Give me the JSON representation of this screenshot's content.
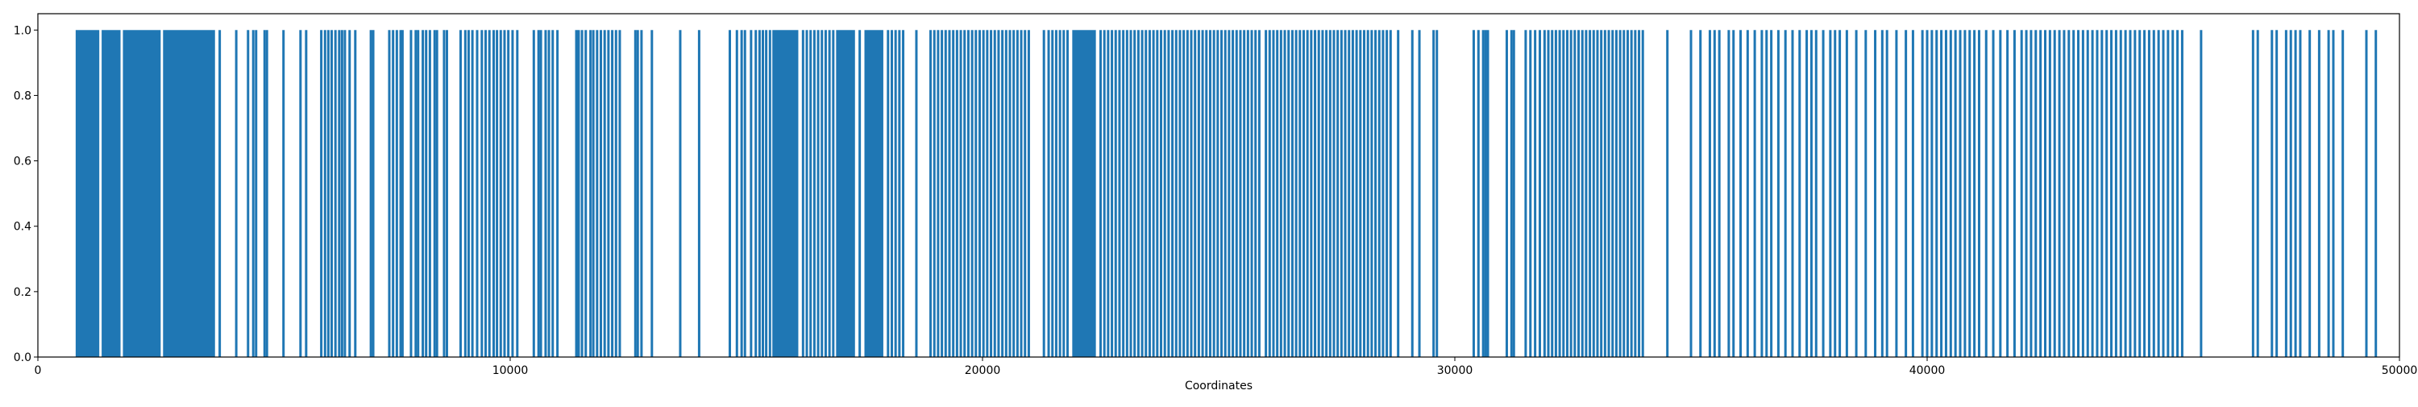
{
  "chart_data": {
    "type": "bar",
    "title": "",
    "xlabel": "Coordinates",
    "ylabel": "",
    "xlim": [
      0,
      50000
    ],
    "ylim": [
      0,
      1.05
    ],
    "grid": false,
    "bar_color": "#1f77b4",
    "bar_value": 1.0,
    "dense_blocks": [
      [
        800,
        1300
      ],
      [
        1350,
        1750
      ],
      [
        1800,
        2600
      ],
      [
        2650,
        3750
      ],
      [
        15550,
        16100
      ],
      [
        16900,
        17300
      ],
      [
        17500,
        17900
      ],
      [
        21900,
        22400
      ]
    ],
    "x": [
      3850,
      4200,
      4450,
      4560,
      4620,
      4800,
      4850,
      5200,
      5560,
      5680,
      6000,
      6080,
      6150,
      6220,
      6300,
      6380,
      6440,
      6500,
      6600,
      6720,
      7050,
      7100,
      7440,
      7520,
      7600,
      7680,
      7720,
      7900,
      8000,
      8050,
      8150,
      8220,
      8300,
      8400,
      8450,
      8600,
      8660,
      8950,
      9050,
      9120,
      9200,
      9300,
      9400,
      9480,
      9560,
      9650,
      9720,
      9800,
      9880,
      9960,
      10050,
      10150,
      10500,
      10600,
      10650,
      10750,
      10820,
      10900,
      11000,
      11400,
      11450,
      11520,
      11600,
      11700,
      11760,
      11840,
      11920,
      12000,
      12080,
      12160,
      12240,
      12320,
      12650,
      12700,
      12780,
      13000,
      13600,
      14000,
      14650,
      14800,
      14900,
      14970,
      15100,
      15200,
      15280,
      15350,
      15420,
      15500,
      16200,
      16280,
      16360,
      16440,
      16520,
      16600,
      16680,
      16760,
      16840,
      17400,
      18000,
      18080,
      18160,
      18240,
      18320,
      18600,
      18900,
      18980,
      19060,
      19140,
      19220,
      19300,
      19380,
      19460,
      19540,
      19620,
      19700,
      19780,
      19860,
      19940,
      20020,
      20100,
      20180,
      20260,
      20340,
      20420,
      20500,
      20580,
      20660,
      20740,
      20820,
      20900,
      20980,
      21300,
      21400,
      21480,
      21560,
      21640,
      21720,
      21800,
      22500,
      22580,
      22660,
      22740,
      22820,
      22900,
      22980,
      23060,
      23140,
      23220,
      23300,
      23380,
      23460,
      23540,
      23620,
      23700,
      23780,
      23860,
      23940,
      24020,
      24100,
      24180,
      24260,
      24340,
      24420,
      24500,
      24580,
      24660,
      24740,
      24820,
      24900,
      24980,
      25060,
      25140,
      25220,
      25300,
      25380,
      25460,
      25540,
      25620,
      25700,
      25780,
      25860,
      26000,
      26080,
      26160,
      26240,
      26320,
      26400,
      26480,
      26560,
      26640,
      26720,
      26800,
      26880,
      26960,
      27040,
      27120,
      27200,
      27280,
      27360,
      27440,
      27520,
      27600,
      27680,
      27760,
      27840,
      27920,
      28000,
      28080,
      28160,
      28240,
      28320,
      28400,
      28480,
      28560,
      28640,
      28800,
      29100,
      29250,
      29550,
      29620,
      30400,
      30500,
      30600,
      30650,
      30700,
      31100,
      31200,
      31250,
      31500,
      31600,
      31700,
      31800,
      31900,
      31980,
      32060,
      32140,
      32220,
      32300,
      32380,
      32460,
      32540,
      32620,
      32700,
      32780,
      32860,
      32940,
      33020,
      33100,
      33180,
      33260,
      33340,
      33420,
      33500,
      33580,
      33660,
      33740,
      33820,
      33900,
      33980,
      34500,
      35000,
      35200,
      35400,
      35500,
      35600,
      35800,
      35900,
      36050,
      36200,
      36350,
      36500,
      36600,
      36700,
      36850,
      37000,
      37150,
      37300,
      37450,
      37550,
      37650,
      37800,
      37950,
      38050,
      38150,
      38300,
      38500,
      38700,
      38900,
      39050,
      39150,
      39350,
      39550,
      39700,
      39900,
      40000,
      40100,
      40200,
      40300,
      40400,
      40500,
      40600,
      40700,
      40800,
      40900,
      41000,
      41100,
      41250,
      41400,
      41550,
      41700,
      41850,
      42000,
      42100,
      42200,
      42300,
      42400,
      42500,
      42600,
      42700,
      42800,
      42900,
      43000,
      43100,
      43200,
      43300,
      43400,
      43500,
      43600,
      43700,
      43800,
      43900,
      44000,
      44100,
      44200,
      44300,
      44400,
      44500,
      44600,
      44700,
      44800,
      44900,
      45000,
      45100,
      45200,
      45300,
      45400,
      45800,
      46900,
      47000,
      47300,
      47400,
      47600,
      47700,
      47800,
      47900,
      48100,
      48300,
      48500,
      48600,
      48800,
      49300,
      49500
    ],
    "x_ticks": [
      0,
      10000,
      20000,
      30000,
      40000,
      50000
    ],
    "y_ticks": [
      0.0,
      0.2,
      0.4,
      0.6,
      0.8,
      1.0
    ]
  }
}
